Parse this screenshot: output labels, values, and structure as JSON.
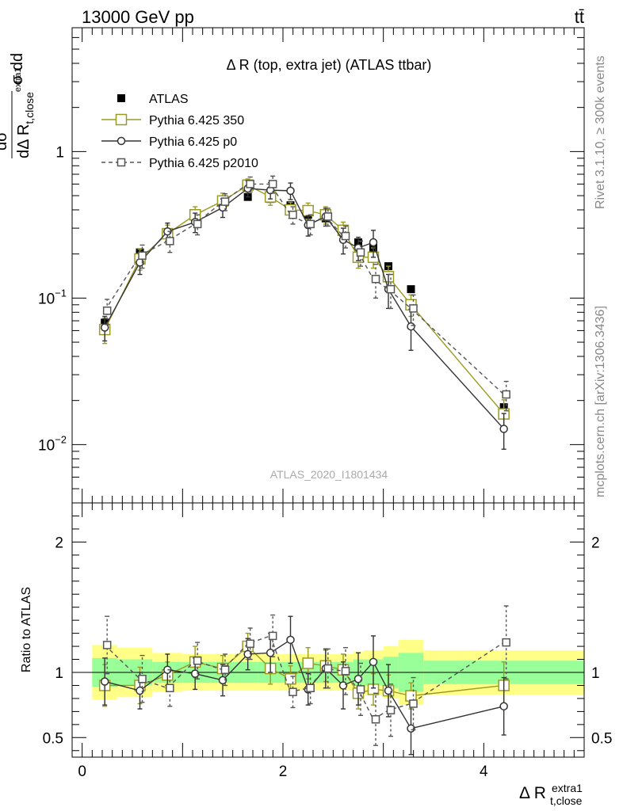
{
  "header": {
    "process": "13000 GeV pp",
    "final_state": "tt̄"
  },
  "side_labels": {
    "rivet": "Rivet 3.1.10, ≥ 300k events",
    "site": "mcplots.cern.ch [arXiv:1306.3436]"
  },
  "watermark": "ATLAS_2020_I1801434",
  "colors": {
    "data": "#000000",
    "mc350": "#9a9a22",
    "p0": "#333333",
    "p2010": "#555555",
    "band_inner": "#99ff99",
    "band_outer": "#ffff88"
  },
  "chart_data": [
    {
      "type": "line",
      "panel": "main",
      "title": "Δ R (top, extra jet) (ATLAS ttbar)",
      "ylabel": "dσ^ttd / dΔ R_t,close^extra1 · 1/σ d",
      "xlabel": "",
      "yscale": "log",
      "xlim": [
        -0.1,
        5.0
      ],
      "ylim": [
        0.004,
        7
      ],
      "yticks": [
        {
          "v": 0.01,
          "base": "10",
          "exp": "−2"
        },
        {
          "v": 0.1,
          "base": "10",
          "exp": "−1"
        },
        {
          "v": 1,
          "base": "1",
          "exp": ""
        }
      ],
      "legend_position": "top-left",
      "x": [
        0.225,
        0.575,
        0.85,
        1.125,
        1.4,
        1.65,
        1.875,
        2.075,
        2.25,
        2.425,
        2.6,
        2.75,
        2.9,
        3.05,
        3.275,
        4.2
      ],
      "series": [
        {
          "name": "ATLAS",
          "style": "data",
          "values": [
            0.068,
            0.205,
            0.28,
            0.34,
            0.455,
            0.49,
            0.475,
            0.43,
            0.37,
            0.35,
            0.28,
            0.24,
            0.22,
            0.165,
            0.115,
            0.018
          ]
        },
        {
          "name": "Pythia 6.425 350",
          "style": "mc350",
          "values": [
            0.061,
            0.185,
            0.275,
            0.37,
            0.46,
            0.59,
            0.49,
            0.4,
            0.395,
            0.37,
            0.29,
            0.19,
            0.19,
            0.14,
            0.09,
            0.0162
          ],
          "errors": [
            0.012,
            0.03,
            0.04,
            0.05,
            0.06,
            0.06,
            0.06,
            0.05,
            0.05,
            0.05,
            0.04,
            0.03,
            0.03,
            0.025,
            0.015,
            0.004
          ]
        },
        {
          "name": "Pythia 6.425 p0",
          "style": "p0",
          "values": [
            0.063,
            0.175,
            0.285,
            0.33,
            0.415,
            0.56,
            0.545,
            0.54,
            0.315,
            0.36,
            0.25,
            0.22,
            0.24,
            0.115,
            0.064,
            0.0128
          ],
          "errors": [
            0.012,
            0.03,
            0.04,
            0.05,
            0.06,
            0.07,
            0.07,
            0.07,
            0.05,
            0.05,
            0.05,
            0.04,
            0.05,
            0.03,
            0.02,
            0.0035
          ]
        },
        {
          "name": "Pythia 6.425 p2010",
          "style": "p2010",
          "values": [
            0.082,
            0.195,
            0.245,
            0.32,
            0.455,
            0.6,
            0.6,
            0.37,
            0.32,
            0.36,
            0.265,
            0.205,
            0.135,
            0.115,
            0.085,
            0.022
          ],
          "errors": [
            0.016,
            0.035,
            0.04,
            0.05,
            0.06,
            0.07,
            0.08,
            0.05,
            0.05,
            0.05,
            0.045,
            0.04,
            0.035,
            0.03,
            0.02,
            0.005
          ]
        }
      ]
    },
    {
      "type": "line",
      "panel": "ratio",
      "ylabel": "Ratio to ATLAS",
      "xlabel": "Δ R_t,close^extra1",
      "xlim": [
        -0.1,
        5.0
      ],
      "ylim": [
        0.35,
        2.3
      ],
      "xticks": [
        0,
        2,
        4
      ],
      "yticks": [
        0.5,
        1,
        2
      ],
      "x": [
        0.225,
        0.575,
        0.85,
        1.125,
        1.4,
        1.65,
        1.875,
        2.075,
        2.25,
        2.425,
        2.6,
        2.75,
        2.9,
        3.05,
        3.275,
        4.2
      ],
      "bins": [
        [
          0.1,
          0.35
        ],
        [
          0.35,
          0.7
        ],
        [
          0.7,
          1.0
        ],
        [
          1.0,
          1.25
        ],
        [
          1.25,
          1.5
        ],
        [
          1.5,
          1.75
        ],
        [
          1.75,
          2.0
        ],
        [
          2.0,
          2.15
        ],
        [
          2.15,
          2.35
        ],
        [
          2.35,
          2.5
        ],
        [
          2.5,
          2.7
        ],
        [
          2.7,
          2.8
        ],
        [
          2.8,
          3.0
        ],
        [
          3.0,
          3.15
        ],
        [
          3.15,
          3.4
        ],
        [
          3.4,
          5.0
        ]
      ],
      "band_inner": [
        0.11,
        0.1,
        0.08,
        0.08,
        0.08,
        0.08,
        0.08,
        0.08,
        0.08,
        0.08,
        0.08,
        0.1,
        0.1,
        0.12,
        0.15,
        0.09
      ],
      "band_outer": [
        0.21,
        0.19,
        0.15,
        0.14,
        0.14,
        0.14,
        0.14,
        0.14,
        0.14,
        0.14,
        0.14,
        0.16,
        0.17,
        0.2,
        0.25,
        0.17
      ],
      "series": [
        {
          "name": "Pythia 6.425 350",
          "style": "mc350",
          "values": [
            0.9,
            0.9,
            0.98,
            1.08,
            1.03,
            1.2,
            1.03,
            0.95,
            1.07,
            1.05,
            1.02,
            0.84,
            0.87,
            0.86,
            0.82,
            0.9
          ],
          "errors": [
            0.16,
            0.14,
            0.1,
            0.12,
            0.1,
            0.1,
            0.12,
            0.1,
            0.12,
            0.12,
            0.12,
            0.12,
            0.12,
            0.12,
            0.1,
            0.18
          ]
        },
        {
          "name": "Pythia 6.425 p0",
          "style": "p0",
          "values": [
            0.93,
            0.86,
            1.02,
            0.99,
            0.94,
            1.14,
            1.15,
            1.25,
            0.87,
            1.03,
            0.9,
            0.95,
            1.08,
            0.86,
            0.57,
            0.74
          ],
          "errors": [
            0.18,
            0.14,
            0.12,
            0.12,
            0.12,
            0.12,
            0.15,
            0.18,
            0.12,
            0.15,
            0.18,
            0.2,
            0.2,
            0.2,
            0.2,
            0.22
          ]
        },
        {
          "name": "Pythia 6.425 p2010",
          "style": "p2010",
          "values": [
            1.21,
            0.95,
            0.88,
            1.09,
            1.02,
            1.22,
            1.28,
            0.85,
            0.88,
            1.03,
            1.01,
            0.87,
            0.64,
            0.71,
            0.76,
            1.23
          ],
          "errors": [
            0.22,
            0.18,
            0.14,
            0.14,
            0.12,
            0.12,
            0.16,
            0.12,
            0.12,
            0.15,
            0.18,
            0.2,
            0.2,
            0.2,
            0.2,
            0.28
          ]
        }
      ]
    }
  ]
}
